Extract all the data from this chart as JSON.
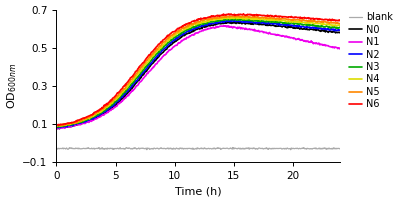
{
  "title": "",
  "xlabel": "Time (h)",
  "ylabel": "OD$_{600nm}$",
  "xlim": [
    0,
    24
  ],
  "ylim": [
    -0.1,
    0.7
  ],
  "yticks": [
    -0.1,
    0.1,
    0.3,
    0.5,
    0.7
  ],
  "xticks": [
    0,
    5,
    10,
    15,
    20
  ],
  "series": {
    "blank": {
      "color": "#aaaaaa",
      "lw": 0.9
    },
    "N0": {
      "color": "#000000",
      "lw": 1.2
    },
    "N1": {
      "color": "#ee00ee",
      "lw": 1.2
    },
    "N2": {
      "color": "#0000ff",
      "lw": 1.2
    },
    "N3": {
      "color": "#00aa00",
      "lw": 1.2
    },
    "N4": {
      "color": "#dddd00",
      "lw": 1.2
    },
    "N5": {
      "color": "#ff8800",
      "lw": 1.2
    },
    "N6": {
      "color": "#ff0000",
      "lw": 1.2
    }
  },
  "legend_order": [
    "blank",
    "N0",
    "N1",
    "N2",
    "N3",
    "N4",
    "N5",
    "N6"
  ],
  "background_color": "#ffffff",
  "blank_level": -0.03,
  "noise_amp": 0.002
}
